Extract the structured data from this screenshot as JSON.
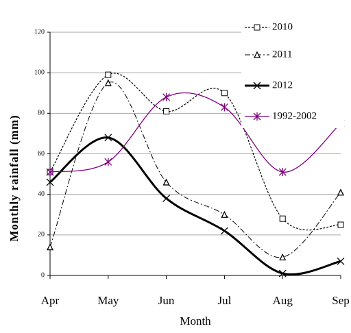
{
  "chart_data": {
    "type": "line",
    "x_label": "Month",
    "y_label": "Monthly rainfall (mm)",
    "categories": [
      "Apr",
      "May",
      "Jun",
      "Jul",
      "Aug",
      "Sep"
    ],
    "series": [
      {
        "name": "2010",
        "color": "#000000",
        "values": [
          51,
          99,
          81,
          90,
          28,
          25
        ]
      },
      {
        "name": "2011",
        "color": "#000000",
        "values": [
          14,
          95,
          46,
          30,
          9,
          41
        ]
      },
      {
        "name": "2012",
        "color": "#000000",
        "values": [
          46,
          68,
          38,
          22,
          1,
          7
        ]
      },
      {
        "name": "1992-2002",
        "color": "#800080",
        "values": [
          51,
          56,
          88,
          83,
          51,
          75
        ]
      }
    ],
    "ylim": [
      0,
      120
    ],
    "yticks": [
      0,
      20,
      40,
      60,
      80,
      100,
      120
    ],
    "grid": true
  }
}
